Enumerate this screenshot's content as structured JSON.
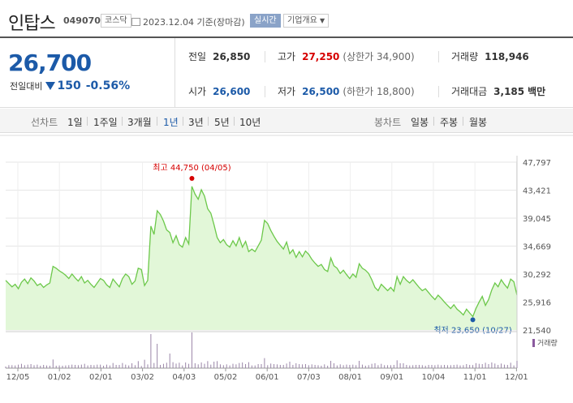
{
  "header": {
    "name": "인탑스",
    "code": "049070",
    "market": "코스닥",
    "date": "2023.12.04",
    "basis": "기준(장마감)",
    "realtime": "실시간",
    "company_info": "기업개요"
  },
  "price": {
    "current": "26,700",
    "change_label": "전일대비",
    "change": "150",
    "change_pct": "-0.56%"
  },
  "stats": {
    "prev_label": "전일",
    "prev": "26,850",
    "high_label": "고가",
    "high": "27,250",
    "upper_limit": "(상한가 34,900)",
    "volume_label": "거래량",
    "volume": "118,946",
    "open_label": "시가",
    "open": "26,600",
    "low_label": "저가",
    "low": "26,500",
    "lower_limit": "(하한가 18,800)",
    "amount_label": "거래대금",
    "amount": "3,185",
    "amount_unit": "백만"
  },
  "tabs": {
    "line_label": "선차트",
    "periods": [
      "1일",
      "1주일",
      "3개월",
      "1년",
      "3년",
      "5년",
      "10년"
    ],
    "selected_period": "1년",
    "candle_label": "봉차트",
    "candle": [
      "일봉",
      "주봉",
      "월봉"
    ]
  },
  "chart_data": {
    "type": "area",
    "y_ticks": [
      "47,797",
      "43,421",
      "39,045",
      "34,669",
      "30,292",
      "25,916",
      "21,540"
    ],
    "ylim": [
      21540,
      47797
    ],
    "x_ticks": [
      "12/05",
      "01/02",
      "02/01",
      "03/02",
      "04/03",
      "05/02",
      "06/01",
      "07/03",
      "08/01",
      "09/01",
      "10/04",
      "11/01",
      "12/01"
    ],
    "max_label": "최고 44,750 (04/05)",
    "max_value": 44750,
    "min_label": "최저 23,650 (10/27)",
    "min_value": 23650,
    "volume_label": "거래량",
    "line_color": "#6cc84a",
    "fill_color": "#e2f7d8",
    "max_color": "#d60000",
    "min_color": "#1c5aa8",
    "price_values": [
      29300,
      28800,
      28300,
      28700,
      28000,
      29000,
      29500,
      28800,
      29700,
      29200,
      28500,
      28800,
      28200,
      28600,
      28900,
      31500,
      31200,
      30800,
      30500,
      30100,
      29600,
      30300,
      29700,
      29200,
      29900,
      28900,
      29300,
      28700,
      28200,
      28900,
      29600,
      29300,
      28600,
      28200,
      29500,
      28900,
      28300,
      29600,
      30300,
      29900,
      28700,
      29200,
      31200,
      31000,
      28500,
      29300,
      37800,
      36500,
      40200,
      39600,
      38600,
      37200,
      36800,
      35200,
      36300,
      34900,
      34500,
      36000,
      35000,
      44000,
      42800,
      42000,
      43500,
      42500,
      40500,
      39800,
      38000,
      36000,
      35200,
      35700,
      34900,
      34500,
      35500,
      34700,
      36000,
      34500,
      35400,
      33800,
      34200,
      33800,
      34700,
      35600,
      38700,
      38200,
      37100,
      36200,
      35400,
      34800,
      34200,
      35300,
      33500,
      34100,
      32900,
      33800,
      33000,
      33900,
      33400,
      32600,
      32000,
      31500,
      31800,
      31000,
      30700,
      32800,
      31600,
      31200,
      30400,
      30900,
      30200,
      29600,
      30300,
      29800,
      31900,
      31200,
      30900,
      30400,
      29400,
      28200,
      27700,
      28700,
      28200,
      27700,
      28200,
      27600,
      29900,
      28700,
      29900,
      29300,
      28900,
      29400,
      28800,
      28200,
      27700,
      28000,
      27400,
      26800,
      26300,
      27000,
      26500,
      25900,
      25400,
      24900,
      25500,
      24800,
      24400,
      23900,
      24800,
      24200,
      23650,
      24900,
      25900,
      26800,
      25400,
      26300,
      27800,
      28900,
      28300,
      29400,
      28700,
      28100,
      29500,
      29100,
      27000
    ]
  }
}
